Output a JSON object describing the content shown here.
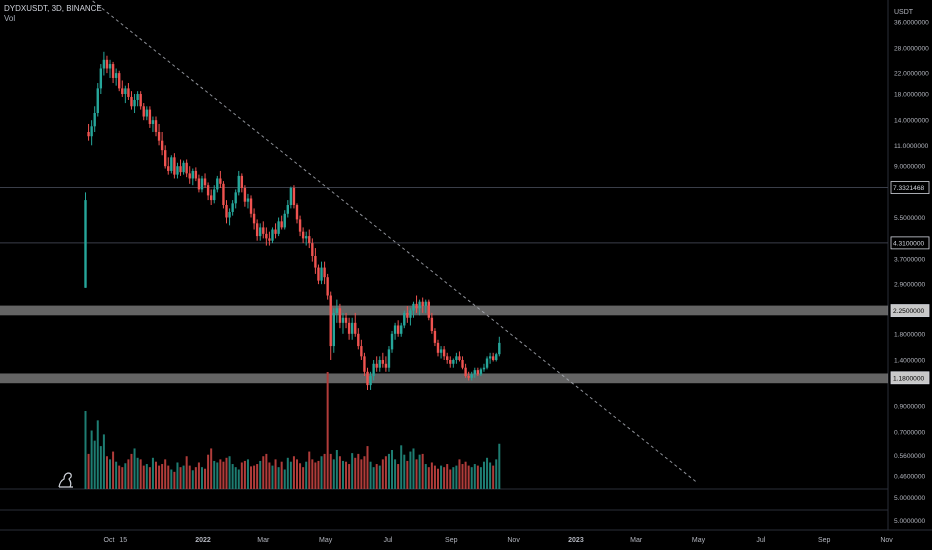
{
  "header": {
    "symbol": "DYDXUSDT, 3D, BINANCE",
    "volume_label": "Vol"
  },
  "axis": {
    "currency": "USDT"
  },
  "chart_data": {
    "type": "candlestick",
    "symbol": "DYDXUSDT",
    "interval": "3D",
    "exchange": "BINANCE",
    "price_scale": "log",
    "x_ticks": [
      "Oct",
      "15",
      "2022",
      "Mar",
      "May",
      "Jul",
      "Sep",
      "Nov",
      "2023",
      "Mar",
      "May",
      "Jul",
      "Sep",
      "Nov"
    ],
    "y_ticks": [
      "36.0000000",
      "28.0000000",
      "22.0000000",
      "18.0000000",
      "14.0000000",
      "11.0000000",
      "9.0000000",
      "5.5000000",
      "3.7000000",
      "2.9000000",
      "1.8000000",
      "1.4000000",
      "0.9000000",
      "0.7000000",
      "0.5600000",
      "0.4600000"
    ],
    "volume_ticks": [
      "5.0000000",
      "5.0000000"
    ],
    "price_labels": [
      {
        "value": "7.3321468",
        "style": "box"
      },
      {
        "value": "4.3100000",
        "style": "box"
      },
      {
        "value": "2.2500000",
        "style": "zone"
      },
      {
        "value": "1.1800000",
        "style": "zone"
      }
    ],
    "zones": [
      {
        "from": 2.15,
        "to": 2.36,
        "color": "#8b8b8b"
      },
      {
        "from": 1.12,
        "to": 1.23,
        "color": "#8b8b8b"
      }
    ],
    "horizontal_lines": [
      7.3321468,
      4.31
    ],
    "trendline": {
      "start": {
        "date": "2021-09-15",
        "price": 44
      },
      "end": {
        "date": "2023-04-30",
        "price": 0.43
      },
      "style": "dashed"
    },
    "colors": {
      "up": "#26a69a",
      "down": "#ef5350",
      "up_vol": "#1e7d72",
      "down_vol": "#b03c3a"
    },
    "candles": [
      {
        "date": "2021-09-08",
        "o": 2.8,
        "h": 7.0,
        "l": 2.8,
        "c": 6.5
      },
      {
        "date": "2021-09-11",
        "o": 12.5,
        "h": 13.5,
        "l": 11.5,
        "c": 12.0
      },
      {
        "date": "2021-09-14",
        "o": 12.0,
        "h": 14.0,
        "l": 11.0,
        "c": 13.2
      },
      {
        "date": "2021-09-17",
        "o": 13.2,
        "h": 16.0,
        "l": 12.5,
        "c": 15.0
      },
      {
        "date": "2021-09-20",
        "o": 15.0,
        "h": 20.0,
        "l": 14.5,
        "c": 19.0
      },
      {
        "date": "2021-09-23",
        "o": 19.0,
        "h": 24.0,
        "l": 18.0,
        "c": 23.0
      },
      {
        "date": "2021-09-26",
        "o": 23.0,
        "h": 27.0,
        "l": 21.5,
        "c": 25.0
      },
      {
        "date": "2021-09-29",
        "o": 25.0,
        "h": 26.0,
        "l": 22.0,
        "c": 23.0
      },
      {
        "date": "2021-10-02",
        "o": 23.0,
        "h": 25.0,
        "l": 21.0,
        "c": 24.0
      },
      {
        "date": "2021-10-05",
        "o": 24.0,
        "h": 24.5,
        "l": 20.0,
        "c": 21.0
      },
      {
        "date": "2021-10-08",
        "o": 21.0,
        "h": 23.0,
        "l": 19.5,
        "c": 22.0
      },
      {
        "date": "2021-10-11",
        "o": 22.0,
        "h": 22.5,
        "l": 18.5,
        "c": 19.0
      },
      {
        "date": "2021-10-14",
        "o": 19.0,
        "h": 20.5,
        "l": 17.5,
        "c": 18.0
      },
      {
        "date": "2021-10-17",
        "o": 18.0,
        "h": 19.5,
        "l": 16.5,
        "c": 19.0
      },
      {
        "date": "2021-10-20",
        "o": 19.0,
        "h": 20.0,
        "l": 17.0,
        "c": 17.5
      },
      {
        "date": "2021-10-23",
        "o": 17.5,
        "h": 18.5,
        "l": 15.5,
        "c": 16.0
      },
      {
        "date": "2021-10-26",
        "o": 16.0,
        "h": 18.0,
        "l": 15.0,
        "c": 17.0
      },
      {
        "date": "2021-10-29",
        "o": 17.0,
        "h": 18.5,
        "l": 16.0,
        "c": 18.0
      },
      {
        "date": "2021-11-01",
        "o": 18.0,
        "h": 18.5,
        "l": 15.5,
        "c": 16.0
      },
      {
        "date": "2021-11-04",
        "o": 16.0,
        "h": 16.5,
        "l": 14.0,
        "c": 14.5
      },
      {
        "date": "2021-11-07",
        "o": 14.5,
        "h": 16.0,
        "l": 14.0,
        "c": 15.5
      },
      {
        "date": "2021-11-10",
        "o": 15.5,
        "h": 16.0,
        "l": 13.0,
        "c": 13.5
      },
      {
        "date": "2021-11-13",
        "o": 13.5,
        "h": 14.5,
        "l": 12.5,
        "c": 14.0
      },
      {
        "date": "2021-11-16",
        "o": 14.0,
        "h": 14.5,
        "l": 12.0,
        "c": 12.5
      },
      {
        "date": "2021-11-19",
        "o": 12.5,
        "h": 13.5,
        "l": 11.0,
        "c": 11.5
      },
      {
        "date": "2021-11-22",
        "o": 11.5,
        "h": 12.5,
        "l": 10.0,
        "c": 10.5
      },
      {
        "date": "2021-11-25",
        "o": 10.5,
        "h": 11.0,
        "l": 8.8,
        "c": 9.0
      },
      {
        "date": "2021-11-28",
        "o": 9.0,
        "h": 9.8,
        "l": 8.3,
        "c": 8.6
      },
      {
        "date": "2021-12-01",
        "o": 8.6,
        "h": 10.0,
        "l": 8.4,
        "c": 9.8
      },
      {
        "date": "2021-12-04",
        "o": 9.8,
        "h": 10.2,
        "l": 8.0,
        "c": 8.3
      },
      {
        "date": "2021-12-07",
        "o": 8.3,
        "h": 9.3,
        "l": 8.0,
        "c": 9.0
      },
      {
        "date": "2021-12-10",
        "o": 9.0,
        "h": 9.6,
        "l": 8.2,
        "c": 8.5
      },
      {
        "date": "2021-12-13",
        "o": 8.5,
        "h": 9.5,
        "l": 8.3,
        "c": 9.3
      },
      {
        "date": "2021-12-16",
        "o": 9.3,
        "h": 9.6,
        "l": 8.1,
        "c": 8.4
      },
      {
        "date": "2021-12-19",
        "o": 8.4,
        "h": 9.0,
        "l": 7.6,
        "c": 8.0
      },
      {
        "date": "2021-12-22",
        "o": 8.0,
        "h": 8.8,
        "l": 7.5,
        "c": 8.6
      },
      {
        "date": "2021-12-25",
        "o": 8.6,
        "h": 8.9,
        "l": 7.8,
        "c": 8.0
      },
      {
        "date": "2021-12-28",
        "o": 8.0,
        "h": 8.3,
        "l": 7.0,
        "c": 7.2
      },
      {
        "date": "2021-12-31",
        "o": 7.2,
        "h": 8.2,
        "l": 7.0,
        "c": 8.0
      },
      {
        "date": "2022-01-03",
        "o": 8.0,
        "h": 8.4,
        "l": 7.3,
        "c": 7.5
      },
      {
        "date": "2022-01-06",
        "o": 7.5,
        "h": 7.7,
        "l": 6.5,
        "c": 6.8
      },
      {
        "date": "2022-01-09",
        "o": 6.8,
        "h": 7.2,
        "l": 6.2,
        "c": 6.5
      },
      {
        "date": "2022-01-12",
        "o": 6.5,
        "h": 7.5,
        "l": 6.3,
        "c": 7.2
      },
      {
        "date": "2022-01-15",
        "o": 7.2,
        "h": 8.2,
        "l": 7.0,
        "c": 8.0
      },
      {
        "date": "2022-01-18",
        "o": 8.0,
        "h": 8.6,
        "l": 7.3,
        "c": 7.6
      },
      {
        "date": "2022-01-21",
        "o": 7.6,
        "h": 7.8,
        "l": 6.0,
        "c": 6.2
      },
      {
        "date": "2022-01-24",
        "o": 6.2,
        "h": 6.5,
        "l": 5.2,
        "c": 5.5
      },
      {
        "date": "2022-01-27",
        "o": 5.5,
        "h": 6.0,
        "l": 5.1,
        "c": 5.8
      },
      {
        "date": "2022-01-30",
        "o": 5.8,
        "h": 6.5,
        "l": 5.6,
        "c": 6.3
      },
      {
        "date": "2022-02-02",
        "o": 6.3,
        "h": 7.2,
        "l": 6.0,
        "c": 7.0
      },
      {
        "date": "2022-02-05",
        "o": 7.0,
        "h": 8.6,
        "l": 6.8,
        "c": 8.2
      },
      {
        "date": "2022-02-08",
        "o": 8.2,
        "h": 8.4,
        "l": 7.0,
        "c": 7.3
      },
      {
        "date": "2022-02-11",
        "o": 7.3,
        "h": 7.5,
        "l": 6.1,
        "c": 6.4
      },
      {
        "date": "2022-02-14",
        "o": 6.4,
        "h": 6.9,
        "l": 6.0,
        "c": 6.6
      },
      {
        "date": "2022-02-17",
        "o": 6.6,
        "h": 6.8,
        "l": 5.5,
        "c": 5.7
      },
      {
        "date": "2022-02-20",
        "o": 5.7,
        "h": 6.0,
        "l": 4.9,
        "c": 5.2
      },
      {
        "date": "2022-02-23",
        "o": 5.2,
        "h": 5.4,
        "l": 4.4,
        "c": 4.6
      },
      {
        "date": "2022-02-26",
        "o": 4.6,
        "h": 5.2,
        "l": 4.4,
        "c": 5.0
      },
      {
        "date": "2022-03-01",
        "o": 5.0,
        "h": 5.3,
        "l": 4.5,
        "c": 4.7
      },
      {
        "date": "2022-03-04",
        "o": 4.7,
        "h": 5.0,
        "l": 4.2,
        "c": 4.5
      },
      {
        "date": "2022-03-07",
        "o": 4.5,
        "h": 4.8,
        "l": 4.2,
        "c": 4.4
      },
      {
        "date": "2022-03-10",
        "o": 4.4,
        "h": 5.0,
        "l": 4.3,
        "c": 4.9
      },
      {
        "date": "2022-03-13",
        "o": 4.9,
        "h": 5.2,
        "l": 4.5,
        "c": 4.7
      },
      {
        "date": "2022-03-16",
        "o": 4.7,
        "h": 5.5,
        "l": 4.6,
        "c": 5.3
      },
      {
        "date": "2022-03-19",
        "o": 5.3,
        "h": 5.6,
        "l": 4.9,
        "c": 5.0
      },
      {
        "date": "2022-03-22",
        "o": 5.0,
        "h": 5.9,
        "l": 4.9,
        "c": 5.7
      },
      {
        "date": "2022-03-25",
        "o": 5.7,
        "h": 6.5,
        "l": 5.5,
        "c": 6.2
      },
      {
        "date": "2022-03-28",
        "o": 6.2,
        "h": 7.4,
        "l": 6.0,
        "c": 7.3
      },
      {
        "date": "2022-03-31",
        "o": 7.3,
        "h": 7.5,
        "l": 6.0,
        "c": 6.2
      },
      {
        "date": "2022-04-03",
        "o": 6.2,
        "h": 6.3,
        "l": 5.2,
        "c": 5.4
      },
      {
        "date": "2022-04-06",
        "o": 5.4,
        "h": 5.6,
        "l": 4.6,
        "c": 4.8
      },
      {
        "date": "2022-04-09",
        "o": 4.8,
        "h": 5.0,
        "l": 4.3,
        "c": 4.5
      },
      {
        "date": "2022-04-12",
        "o": 4.5,
        "h": 4.8,
        "l": 4.2,
        "c": 4.6
      },
      {
        "date": "2022-04-15",
        "o": 4.6,
        "h": 4.9,
        "l": 4.1,
        "c": 4.3
      },
      {
        "date": "2022-04-18",
        "o": 4.3,
        "h": 4.5,
        "l": 3.6,
        "c": 3.8
      },
      {
        "date": "2022-04-21",
        "o": 3.8,
        "h": 4.1,
        "l": 3.2,
        "c": 3.4
      },
      {
        "date": "2022-04-24",
        "o": 3.4,
        "h": 3.5,
        "l": 2.9,
        "c": 3.0
      },
      {
        "date": "2022-04-27",
        "o": 3.0,
        "h": 3.6,
        "l": 2.9,
        "c": 3.4
      },
      {
        "date": "2022-04-30",
        "o": 3.4,
        "h": 3.6,
        "l": 2.9,
        "c": 3.1
      },
      {
        "date": "2022-05-03",
        "o": 3.1,
        "h": 3.2,
        "l": 2.5,
        "c": 2.6
      },
      {
        "date": "2022-05-06",
        "o": 2.6,
        "h": 2.7,
        "l": 1.4,
        "c": 1.6
      },
      {
        "date": "2022-05-09",
        "o": 1.6,
        "h": 2.3,
        "l": 1.5,
        "c": 2.2
      },
      {
        "date": "2022-05-12",
        "o": 2.2,
        "h": 2.5,
        "l": 2.0,
        "c": 2.3
      },
      {
        "date": "2022-05-15",
        "o": 2.3,
        "h": 2.4,
        "l": 1.9,
        "c": 2.0
      },
      {
        "date": "2022-05-18",
        "o": 2.0,
        "h": 2.2,
        "l": 1.8,
        "c": 2.1
      },
      {
        "date": "2022-05-21",
        "o": 2.1,
        "h": 2.2,
        "l": 1.9,
        "c": 2.0
      },
      {
        "date": "2022-05-24",
        "o": 2.0,
        "h": 2.1,
        "l": 1.7,
        "c": 1.8
      },
      {
        "date": "2022-05-27",
        "o": 1.8,
        "h": 2.1,
        "l": 1.7,
        "c": 2.0
      },
      {
        "date": "2022-05-30",
        "o": 2.0,
        "h": 2.2,
        "l": 1.75,
        "c": 1.8
      },
      {
        "date": "2022-06-02",
        "o": 1.8,
        "h": 1.9,
        "l": 1.55,
        "c": 1.6
      },
      {
        "date": "2022-06-05",
        "o": 1.6,
        "h": 1.7,
        "l": 1.4,
        "c": 1.45
      },
      {
        "date": "2022-06-08",
        "o": 1.45,
        "h": 1.5,
        "l": 1.2,
        "c": 1.25
      },
      {
        "date": "2022-06-11",
        "o": 1.25,
        "h": 1.3,
        "l": 1.05,
        "c": 1.1
      },
      {
        "date": "2022-06-14",
        "o": 1.1,
        "h": 1.25,
        "l": 1.05,
        "c": 1.2
      },
      {
        "date": "2022-06-17",
        "o": 1.2,
        "h": 1.4,
        "l": 1.15,
        "c": 1.35
      },
      {
        "date": "2022-06-20",
        "o": 1.35,
        "h": 1.45,
        "l": 1.25,
        "c": 1.3
      },
      {
        "date": "2022-06-23",
        "o": 1.3,
        "h": 1.45,
        "l": 1.25,
        "c": 1.4
      },
      {
        "date": "2022-06-26",
        "o": 1.4,
        "h": 1.5,
        "l": 1.3,
        "c": 1.35
      },
      {
        "date": "2022-06-29",
        "o": 1.35,
        "h": 1.45,
        "l": 1.25,
        "c": 1.3
      },
      {
        "date": "2022-07-02",
        "o": 1.3,
        "h": 1.6,
        "l": 1.25,
        "c": 1.55
      },
      {
        "date": "2022-07-05",
        "o": 1.55,
        "h": 1.85,
        "l": 1.5,
        "c": 1.8
      },
      {
        "date": "2022-07-08",
        "o": 1.8,
        "h": 2.0,
        "l": 1.7,
        "c": 1.95
      },
      {
        "date": "2022-07-11",
        "o": 1.95,
        "h": 2.05,
        "l": 1.75,
        "c": 1.8
      },
      {
        "date": "2022-07-14",
        "o": 1.8,
        "h": 2.0,
        "l": 1.75,
        "c": 1.95
      },
      {
        "date": "2022-07-17",
        "o": 1.95,
        "h": 2.25,
        "l": 1.9,
        "c": 2.2
      },
      {
        "date": "2022-07-20",
        "o": 2.2,
        "h": 2.35,
        "l": 2.0,
        "c": 2.1
      },
      {
        "date": "2022-07-23",
        "o": 2.1,
        "h": 2.3,
        "l": 1.95,
        "c": 2.25
      },
      {
        "date": "2022-07-26",
        "o": 2.25,
        "h": 2.45,
        "l": 2.1,
        "c": 2.4
      },
      {
        "date": "2022-07-29",
        "o": 2.4,
        "h": 2.6,
        "l": 2.2,
        "c": 2.3
      },
      {
        "date": "2022-08-01",
        "o": 2.3,
        "h": 2.5,
        "l": 2.15,
        "c": 2.45
      },
      {
        "date": "2022-08-04",
        "o": 2.45,
        "h": 2.55,
        "l": 2.2,
        "c": 2.35
      },
      {
        "date": "2022-08-07",
        "o": 2.35,
        "h": 2.5,
        "l": 2.2,
        "c": 2.45
      },
      {
        "date": "2022-08-10",
        "o": 2.45,
        "h": 2.5,
        "l": 2.05,
        "c": 2.1
      },
      {
        "date": "2022-08-13",
        "o": 2.1,
        "h": 2.2,
        "l": 1.8,
        "c": 1.85
      },
      {
        "date": "2022-08-16",
        "o": 1.85,
        "h": 1.9,
        "l": 1.6,
        "c": 1.65
      },
      {
        "date": "2022-08-19",
        "o": 1.65,
        "h": 1.7,
        "l": 1.45,
        "c": 1.5
      },
      {
        "date": "2022-08-22",
        "o": 1.5,
        "h": 1.6,
        "l": 1.42,
        "c": 1.55
      },
      {
        "date": "2022-08-25",
        "o": 1.55,
        "h": 1.6,
        "l": 1.4,
        "c": 1.45
      },
      {
        "date": "2022-08-28",
        "o": 1.45,
        "h": 1.5,
        "l": 1.35,
        "c": 1.4
      },
      {
        "date": "2022-08-31",
        "o": 1.4,
        "h": 1.45,
        "l": 1.3,
        "c": 1.35
      },
      {
        "date": "2022-09-03",
        "o": 1.35,
        "h": 1.42,
        "l": 1.3,
        "c": 1.4
      },
      {
        "date": "2022-09-06",
        "o": 1.4,
        "h": 1.5,
        "l": 1.35,
        "c": 1.45
      },
      {
        "date": "2022-09-09",
        "o": 1.45,
        "h": 1.52,
        "l": 1.38,
        "c": 1.4
      },
      {
        "date": "2022-09-12",
        "o": 1.4,
        "h": 1.45,
        "l": 1.28,
        "c": 1.3
      },
      {
        "date": "2022-09-15",
        "o": 1.3,
        "h": 1.35,
        "l": 1.18,
        "c": 1.2
      },
      {
        "date": "2022-09-18",
        "o": 1.2,
        "h": 1.25,
        "l": 1.15,
        "c": 1.18
      },
      {
        "date": "2022-09-21",
        "o": 1.18,
        "h": 1.25,
        "l": 1.15,
        "c": 1.22
      },
      {
        "date": "2022-09-24",
        "o": 1.22,
        "h": 1.3,
        "l": 1.18,
        "c": 1.27
      },
      {
        "date": "2022-09-27",
        "o": 1.27,
        "h": 1.3,
        "l": 1.2,
        "c": 1.22
      },
      {
        "date": "2022-09-30",
        "o": 1.22,
        "h": 1.3,
        "l": 1.2,
        "c": 1.28
      },
      {
        "date": "2022-10-03",
        "o": 1.28,
        "h": 1.35,
        "l": 1.25,
        "c": 1.3
      },
      {
        "date": "2022-10-06",
        "o": 1.3,
        "h": 1.45,
        "l": 1.28,
        "c": 1.42
      },
      {
        "date": "2022-10-09",
        "o": 1.42,
        "h": 1.5,
        "l": 1.35,
        "c": 1.45
      },
      {
        "date": "2022-10-12",
        "o": 1.45,
        "h": 1.5,
        "l": 1.38,
        "c": 1.4
      },
      {
        "date": "2022-10-15",
        "o": 1.4,
        "h": 1.5,
        "l": 1.38,
        "c": 1.48
      },
      {
        "date": "2022-10-18",
        "o": 1.48,
        "h": 1.75,
        "l": 1.45,
        "c": 1.65
      }
    ],
    "volume_relative": [
      1.0,
      0.45,
      0.75,
      0.62,
      0.88,
      0.55,
      0.7,
      0.42,
      0.38,
      0.48,
      0.35,
      0.3,
      0.28,
      0.33,
      0.38,
      0.45,
      0.52,
      0.4,
      0.38,
      0.3,
      0.32,
      0.28,
      0.4,
      0.35,
      0.3,
      0.32,
      0.38,
      0.3,
      0.25,
      0.22,
      0.34,
      0.28,
      0.3,
      0.42,
      0.3,
      0.24,
      0.28,
      0.34,
      0.28,
      0.26,
      0.44,
      0.52,
      0.36,
      0.34,
      0.38,
      0.35,
      0.4,
      0.42,
      0.32,
      0.28,
      0.25,
      0.34,
      0.36,
      0.38,
      0.29,
      0.3,
      0.32,
      0.36,
      0.42,
      0.45,
      0.34,
      0.3,
      0.38,
      0.28,
      0.35,
      0.25,
      0.4,
      0.35,
      0.42,
      0.38,
      0.33,
      0.28,
      0.35,
      0.48,
      0.38,
      0.34,
      0.36,
      0.42,
      0.45,
      1.5,
      0.45,
      0.38,
      0.5,
      0.42,
      0.36,
      0.35,
      0.32,
      0.46,
      0.4,
      0.45,
      0.38,
      0.42,
      0.55,
      0.35,
      0.28,
      0.32,
      0.3,
      0.38,
      0.42,
      0.45,
      0.5,
      0.38,
      0.32,
      0.56,
      0.44,
      0.36,
      0.48,
      0.52,
      0.38,
      0.44,
      0.45,
      0.32,
      0.28,
      0.34,
      0.3,
      0.26,
      0.3,
      0.28,
      0.32,
      0.25,
      0.28,
      0.3,
      0.38,
      0.32,
      0.35,
      0.3,
      0.28,
      0.32,
      0.3,
      0.28,
      0.35,
      0.4,
      0.34,
      0.3,
      0.38,
      0.58,
      0.6,
      0.28,
      0.3,
      0.33
    ]
  }
}
